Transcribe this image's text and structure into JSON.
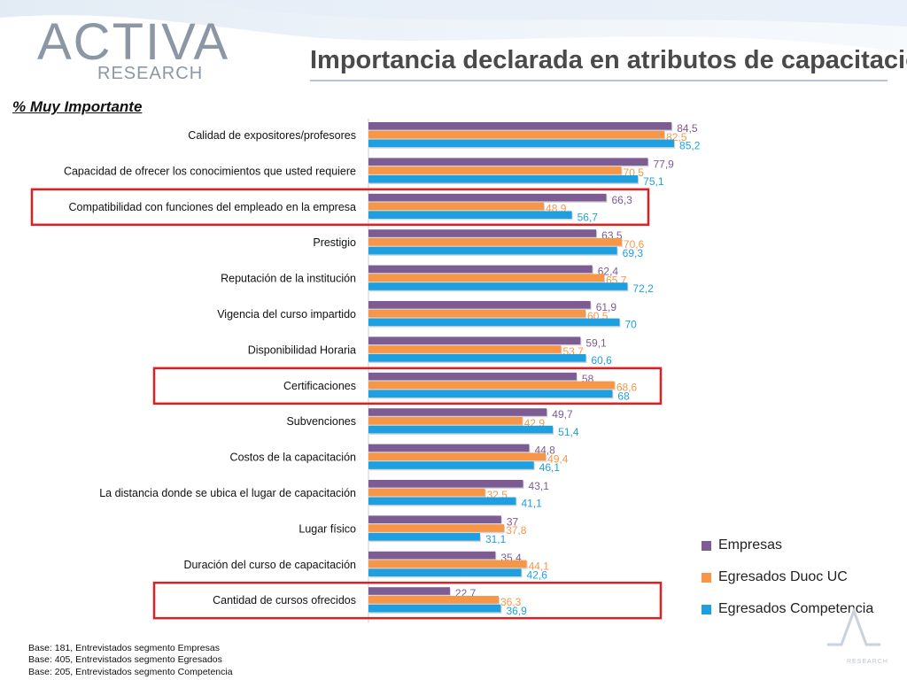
{
  "header": {
    "logo_brand": "ACTIVA",
    "logo_sub": "RESEARCH",
    "title": "Importancia declarada en atributos de capacitación",
    "subtitle": "% Muy Importante"
  },
  "colors": {
    "empresas": "#7d5c94",
    "duoc": "#f79646",
    "competencia": "#1ea0e0",
    "highlight": "#e02020",
    "title_text": "#4a4a4a"
  },
  "chart_data": {
    "type": "bar",
    "orientation": "horizontal",
    "categories": [
      "Calidad de expositores/profesores",
      "Capacidad de ofrecer los conocimientos que usted requiere",
      "Compatibilidad con funciones del empleado en la empresa",
      "Prestigio",
      "Reputación de la institución",
      "Vigencia del curso impartido",
      "Disponibilidad Horaria",
      "Certificaciones",
      "Subvenciones",
      "Costos de la capacitación",
      "La distancia donde se ubica el lugar de capacitación",
      "Lugar físico",
      "Duración del curso de capacitación",
      "Cantidad de cursos ofrecidos"
    ],
    "series": [
      {
        "name": "Empresas",
        "labels": [
          "84,5",
          "77,9",
          "66,3",
          "63,5",
          "62,4",
          "61,9",
          "59,1",
          "58",
          "49,7",
          "44,8",
          "43,1",
          "37",
          "35,4",
          "22,7"
        ],
        "values": [
          84.5,
          77.9,
          66.3,
          63.5,
          62.4,
          61.9,
          59.1,
          58,
          49.7,
          44.8,
          43.1,
          37,
          35.4,
          22.7
        ]
      },
      {
        "name": "Egresados Duoc UC",
        "labels": [
          "82,5",
          "70,5",
          "48,9",
          "70,6",
          "65,7",
          "60,5",
          "53,7",
          "68,6",
          "42,9",
          "49,4",
          "32,5",
          "37,8",
          "44,1",
          "36,3"
        ],
        "values": [
          82.5,
          70.5,
          48.9,
          70.6,
          65.7,
          60.5,
          53.7,
          68.6,
          42.9,
          49.4,
          32.5,
          37.8,
          44.1,
          36.3
        ]
      },
      {
        "name": "Egresados Competencia",
        "labels": [
          "85,2",
          "75,1",
          "56,7",
          "69,3",
          "72,2",
          "70",
          "60,6",
          "68",
          "51,4",
          "46,1",
          "41,1",
          "31,1",
          "42,6",
          "36,9"
        ],
        "values": [
          85.2,
          75.1,
          56.7,
          69.3,
          72.2,
          70,
          60.6,
          68,
          51.4,
          46.1,
          41.1,
          31.1,
          42.6,
          36.9
        ]
      }
    ],
    "highlighted_categories": [
      2,
      7,
      13
    ],
    "legend_position": "bottom-right",
    "xlim": [
      0,
      100
    ],
    "grid": false
  },
  "legend": [
    {
      "label": "Empresas",
      "color": "#7d5c94"
    },
    {
      "label": "Egresados Duoc UC",
      "color": "#f79646"
    },
    {
      "label": "Egresados Competencia",
      "color": "#1ea0e0"
    }
  ],
  "footer": {
    "line1": "Base: 181, Entrevistados segmento Empresas",
    "line2": "Base: 405, Entrevistados segmento Egresados",
    "line3": "Base: 205, Entrevistados segmento Competencia"
  },
  "corner_logo_text": "RESEARCH"
}
